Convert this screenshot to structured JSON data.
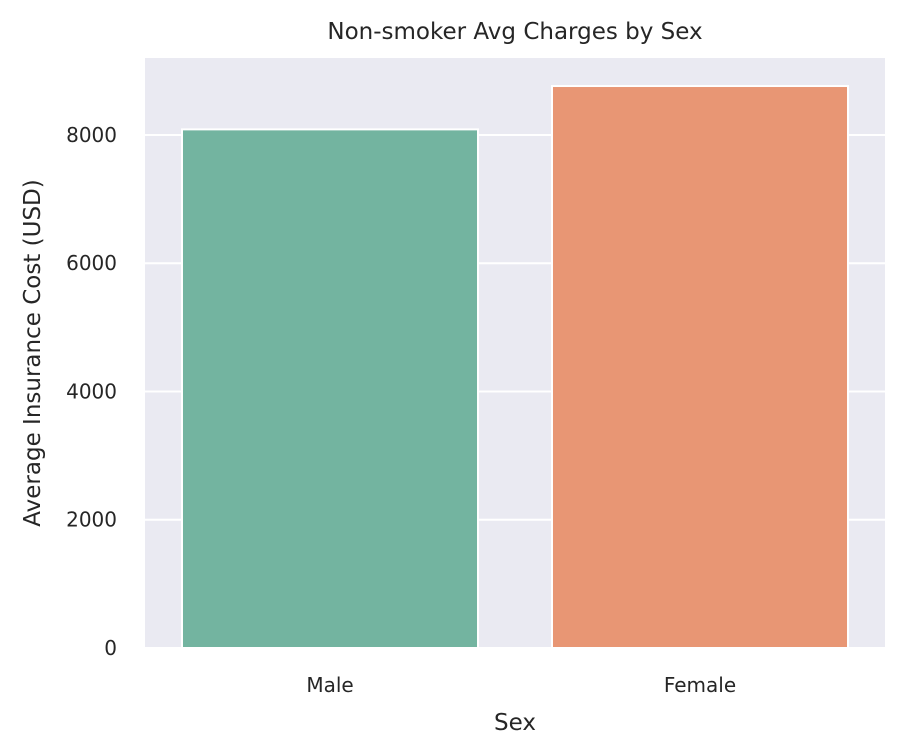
{
  "chart_data": {
    "type": "bar",
    "title": "Non-smoker Avg Charges by Sex",
    "xlabel": "Sex",
    "ylabel": "Average Insurance Cost (USD)",
    "categories": [
      "Male",
      "Female"
    ],
    "values": [
      8087,
      8763
    ],
    "ylim": [
      0,
      9200
    ],
    "yticks": [
      0,
      2000,
      4000,
      6000,
      8000
    ],
    "grid": true,
    "colors": {
      "background": "#eaeaf2",
      "grid": "#ffffff",
      "bars": [
        "#73b4a0",
        "#e89674"
      ]
    }
  }
}
